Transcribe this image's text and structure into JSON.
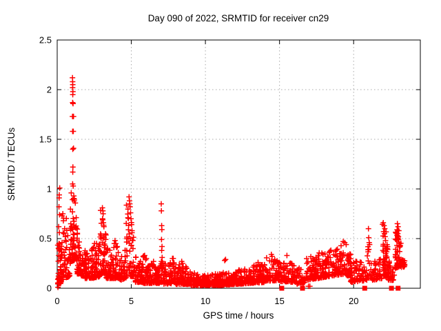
{
  "background": "#ffffff",
  "chart_data": {
    "type": "scatter",
    "title": "Day 090 of 2022, SRMTID for receiver cn29",
    "xlabel": "GPS time / hours",
    "ylabel": "SRMTID / TECUs",
    "xlim": [
      0,
      24.5
    ],
    "ylim": [
      0,
      2.5
    ],
    "xticks": [
      0,
      5,
      10,
      15,
      20
    ],
    "yticks": [
      0,
      0.5,
      1,
      1.5,
      2,
      2.5
    ],
    "grid": true,
    "grid_color": "#a8a8a8",
    "frame_color": "#000000",
    "legend": "none",
    "series": [
      {
        "name": "SRMTID",
        "marker": "plus",
        "color": "#ff0000",
        "spike_points": [
          [
            0.05,
            0.01
          ],
          [
            0.08,
            0.1
          ],
          [
            0.1,
            0.33
          ],
          [
            0.12,
            0.45
          ],
          [
            0.12,
            0.82
          ],
          [
            0.13,
            0.91
          ],
          [
            0.14,
            0.94
          ],
          [
            0.15,
            0.56
          ],
          [
            0.16,
            0.74
          ],
          [
            0.17,
            1.01
          ],
          [
            0.1,
            0.62
          ],
          [
            0.2,
            0.28
          ],
          [
            0.22,
            0.18
          ],
          [
            0.38,
            0.75
          ],
          [
            0.42,
            0.68
          ],
          [
            0.45,
            0.55
          ],
          [
            0.5,
            0.6
          ],
          [
            0.55,
            0.52
          ],
          [
            0.6,
            0.47
          ],
          [
            1.03,
            2.12
          ],
          [
            1.04,
            2.08
          ],
          [
            1.05,
            2.05
          ],
          [
            1.04,
            2.02
          ],
          [
            1.06,
            1.98
          ],
          [
            1.05,
            1.95
          ],
          [
            1.04,
            1.87
          ],
          [
            1.07,
            1.86
          ],
          [
            1.03,
            1.73
          ],
          [
            1.1,
            1.73
          ],
          [
            1.04,
            1.58
          ],
          [
            1.09,
            1.58
          ],
          [
            1.05,
            1.4
          ],
          [
            1.1,
            1.41
          ],
          [
            1.06,
            1.22
          ],
          [
            1.05,
            1.17
          ],
          [
            1.04,
            1.05
          ],
          [
            1.08,
            1.03
          ],
          [
            0.95,
            0.96
          ],
          [
            1.12,
            0.93
          ],
          [
            1.15,
            0.88
          ],
          [
            3.05,
            0.81
          ],
          [
            3.08,
            0.78
          ],
          [
            3.1,
            0.75
          ],
          [
            3.06,
            0.7
          ],
          [
            3.12,
            0.66
          ],
          [
            3.15,
            0.62
          ],
          [
            3.9,
            0.48
          ],
          [
            3.95,
            0.45
          ],
          [
            4.85,
            0.92
          ],
          [
            4.88,
            0.88
          ],
          [
            4.9,
            0.85
          ],
          [
            4.92,
            0.82
          ],
          [
            4.95,
            0.76
          ],
          [
            4.98,
            0.7
          ],
          [
            5.02,
            0.64
          ],
          [
            5.05,
            0.58
          ],
          [
            5.9,
            0.33
          ],
          [
            6.5,
            0.27
          ],
          [
            7.02,
            0.85
          ],
          [
            7.03,
            0.78
          ],
          [
            7.05,
            0.63
          ],
          [
            7.06,
            0.59
          ],
          [
            7.04,
            0.49
          ],
          [
            7.07,
            0.42
          ],
          [
            7.05,
            0.38
          ],
          [
            7.08,
            0.31
          ],
          [
            7.03,
            0.27
          ],
          [
            7.06,
            0.23
          ],
          [
            7.78,
            0.3
          ],
          [
            7.83,
            0.3
          ],
          [
            8.4,
            0.27
          ],
          [
            8.45,
            0.25
          ],
          [
            11.3,
            0.28
          ],
          [
            11.36,
            0.29
          ],
          [
            13.55,
            0.26
          ],
          [
            14.45,
            0.34
          ],
          [
            14.5,
            0.32
          ],
          [
            15.5,
            0.33
          ],
          [
            16.95,
            0.02
          ],
          [
            17.05,
            0.02
          ],
          [
            18.35,
            0.36
          ],
          [
            19.3,
            0.47
          ],
          [
            19.4,
            0.46
          ],
          [
            19.5,
            0.44
          ],
          [
            21.0,
            0.6
          ],
          [
            21.02,
            0.51
          ],
          [
            21.05,
            0.46
          ],
          [
            21.08,
            0.44
          ],
          [
            22.0,
            0.66
          ],
          [
            22.05,
            0.63
          ],
          [
            22.1,
            0.6
          ],
          [
            22.02,
            0.57
          ],
          [
            22.08,
            0.55
          ],
          [
            22.12,
            0.52
          ],
          [
            22.15,
            0.48
          ],
          [
            22.95,
            0.65
          ],
          [
            23.0,
            0.62
          ],
          [
            23.05,
            0.58
          ],
          [
            22.98,
            0.55
          ],
          [
            23.02,
            0.52
          ],
          [
            23.35,
            0.28
          ],
          [
            23.4,
            0.26
          ]
        ],
        "noise_bands_format": "[x_start, x_end, low_start, low_end, high_start, high_end, n_points] — estimated envelope of the dense scatter band",
        "noise_bands": [
          [
            0.03,
            0.3,
            0.04,
            0.05,
            0.5,
            0.45,
            45
          ],
          [
            0.3,
            0.85,
            0.08,
            0.12,
            0.78,
            0.7,
            55
          ],
          [
            0.85,
            1.3,
            0.25,
            0.3,
            0.97,
            0.9,
            65
          ],
          [
            1.3,
            1.75,
            0.15,
            0.12,
            0.72,
            0.4,
            60
          ],
          [
            1.75,
            2.4,
            0.1,
            0.1,
            0.38,
            0.42,
            70
          ],
          [
            2.4,
            2.9,
            0.1,
            0.12,
            0.5,
            0.45,
            60
          ],
          [
            2.9,
            3.3,
            0.15,
            0.15,
            0.8,
            0.6,
            55
          ],
          [
            3.3,
            3.8,
            0.1,
            0.1,
            0.42,
            0.4,
            55
          ],
          [
            3.8,
            4.2,
            0.1,
            0.1,
            0.5,
            0.38,
            45
          ],
          [
            4.2,
            4.65,
            0.08,
            0.1,
            0.35,
            0.4,
            45
          ],
          [
            4.65,
            5.25,
            0.12,
            0.12,
            0.9,
            0.55,
            65
          ],
          [
            5.25,
            5.8,
            0.06,
            0.06,
            0.35,
            0.25,
            55
          ],
          [
            5.8,
            6.4,
            0.05,
            0.05,
            0.33,
            0.25,
            60
          ],
          [
            6.4,
            6.9,
            0.05,
            0.05,
            0.27,
            0.22,
            50
          ],
          [
            6.9,
            7.2,
            0.06,
            0.06,
            0.3,
            0.28,
            25
          ],
          [
            7.2,
            8.0,
            0.04,
            0.05,
            0.24,
            0.28,
            75
          ],
          [
            8.0,
            9.0,
            0.04,
            0.04,
            0.26,
            0.2,
            90
          ],
          [
            9.0,
            10.0,
            0.03,
            0.03,
            0.16,
            0.14,
            95
          ],
          [
            10.0,
            11.0,
            0.03,
            0.03,
            0.14,
            0.15,
            95
          ],
          [
            11.0,
            12.0,
            0.03,
            0.04,
            0.16,
            0.16,
            90
          ],
          [
            12.0,
            13.0,
            0.04,
            0.05,
            0.18,
            0.2,
            90
          ],
          [
            13.0,
            14.0,
            0.05,
            0.06,
            0.22,
            0.26,
            90
          ],
          [
            14.0,
            15.0,
            0.07,
            0.08,
            0.32,
            0.3,
            85
          ],
          [
            15.0,
            16.1,
            0.07,
            0.06,
            0.3,
            0.24,
            85
          ],
          [
            16.1,
            16.7,
            0.04,
            0.05,
            0.2,
            0.22,
            35
          ],
          [
            16.7,
            17.6,
            0.08,
            0.1,
            0.3,
            0.34,
            70
          ],
          [
            17.6,
            18.4,
            0.1,
            0.12,
            0.36,
            0.38,
            70
          ],
          [
            18.4,
            19.2,
            0.12,
            0.14,
            0.4,
            0.44,
            65
          ],
          [
            19.2,
            19.8,
            0.14,
            0.12,
            0.48,
            0.4,
            50
          ],
          [
            19.8,
            20.9,
            0.06,
            0.08,
            0.3,
            0.26,
            70
          ],
          [
            20.9,
            21.25,
            0.1,
            0.1,
            0.55,
            0.4,
            18
          ],
          [
            21.25,
            21.95,
            0.08,
            0.1,
            0.28,
            0.3,
            40
          ],
          [
            21.95,
            22.3,
            0.12,
            0.12,
            0.66,
            0.55,
            55
          ],
          [
            22.3,
            22.75,
            0.08,
            0.08,
            0.3,
            0.25,
            30
          ],
          [
            22.8,
            23.2,
            0.2,
            0.22,
            0.65,
            0.5,
            55
          ],
          [
            23.2,
            23.45,
            0.2,
            0.22,
            0.34,
            0.28,
            14
          ]
        ]
      },
      {
        "name": "flagged-zero-markers",
        "marker": "filled-square",
        "color": "#ff0000",
        "points": [
          [
            15.15,
            0
          ],
          [
            16.55,
            0
          ],
          [
            20.75,
            0
          ],
          [
            22.55,
            0
          ],
          [
            23.0,
            0
          ]
        ]
      }
    ]
  }
}
